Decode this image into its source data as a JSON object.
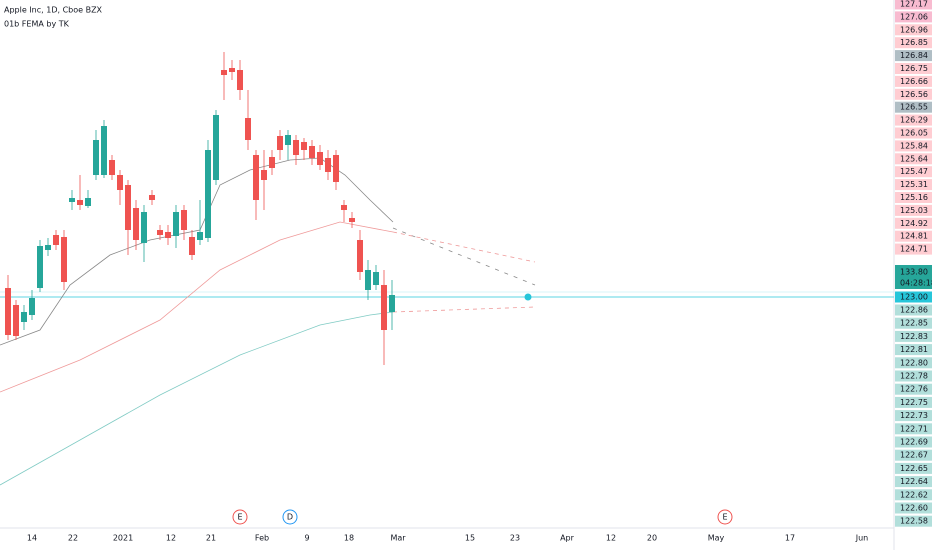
{
  "header": {
    "symbol": "Apple Inc, 1D, Cboe BZX",
    "indicator": "01b FEMA by TK"
  },
  "price_axis": {
    "labels_upper": [
      "127.17",
      "127.06",
      "126.96",
      "126.85",
      "126.84",
      "126.75",
      "126.66",
      "126.56",
      "126.55",
      "126.29",
      "126.05",
      "125.84",
      "125.64",
      "125.47",
      "125.31",
      "125.16",
      "125.03",
      "124.92",
      "124.81",
      "124.71"
    ],
    "last_price": "133.80",
    "countdown": "04:28:18",
    "line_price": "123.00",
    "labels_lower": [
      "122.86",
      "122.85",
      "122.83",
      "122.81",
      "122.80",
      "122.78",
      "122.76",
      "122.75",
      "122.73",
      "122.71",
      "122.69",
      "122.67",
      "122.65",
      "122.64",
      "122.62",
      "122.60",
      "122.58"
    ]
  },
  "time_axis": [
    "14",
    "22",
    "2021",
    "12",
    "21",
    "Feb",
    "9",
    "18",
    "Mar",
    "15",
    "23",
    "Apr",
    "12",
    "20",
    "May",
    "17",
    "Jun"
  ],
  "event_markers": [
    "E",
    "D",
    "E"
  ]
}
